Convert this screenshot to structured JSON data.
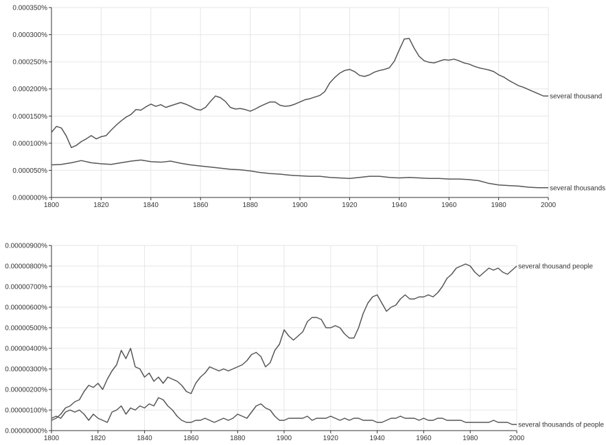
{
  "chart_data": [
    {
      "type": "line",
      "title": "",
      "xlabel": "",
      "ylabel": "",
      "xlim": [
        1800,
        2000
      ],
      "ylim": [
        0,
        0.00035
      ],
      "x_ticks": [
        "1800",
        "1820",
        "1840",
        "1860",
        "1880",
        "1900",
        "1920",
        "1940",
        "1960",
        "1980",
        "2000"
      ],
      "y_ticks": [
        "0.000000%",
        "0.000050%",
        "0.000100%",
        "0.000150%",
        "0.000200%",
        "0.000250%",
        "0.000300%",
        "0.000350%"
      ],
      "grid": true,
      "legend": "labels at line ends",
      "series": [
        {
          "name": "several thousand",
          "color": "#555555",
          "x": [
            1800,
            1802,
            1804,
            1806,
            1808,
            1810,
            1812,
            1814,
            1816,
            1818,
            1820,
            1822,
            1824,
            1826,
            1828,
            1830,
            1832,
            1834,
            1836,
            1838,
            1840,
            1842,
            1844,
            1846,
            1848,
            1850,
            1852,
            1854,
            1856,
            1858,
            1860,
            1862,
            1864,
            1866,
            1868,
            1870,
            1872,
            1874,
            1876,
            1878,
            1880,
            1882,
            1884,
            1886,
            1888,
            1890,
            1892,
            1894,
            1896,
            1898,
            1900,
            1902,
            1904,
            1906,
            1908,
            1910,
            1912,
            1914,
            1916,
            1918,
            1920,
            1922,
            1924,
            1926,
            1928,
            1930,
            1932,
            1934,
            1936,
            1938,
            1940,
            1942,
            1944,
            1946,
            1948,
            1950,
            1952,
            1954,
            1956,
            1958,
            1960,
            1962,
            1964,
            1966,
            1968,
            1970,
            1972,
            1974,
            1976,
            1978,
            1980,
            1982,
            1984,
            1986,
            1988,
            1990,
            1992,
            1994,
            1996,
            1998,
            2000
          ],
          "values": [
            0.00012,
            0.000131,
            0.000128,
            0.000113,
            9.2e-05,
            9.6e-05,
            0.000103,
            0.000108,
            0.000114,
            0.000108,
            0.000112,
            0.000114,
            0.000124,
            0.000133,
            0.000141,
            0.000148,
            0.000153,
            0.000162,
            0.000161,
            0.000167,
            0.000172,
            0.000168,
            0.000171,
            0.000166,
            0.000169,
            0.000172,
            0.000175,
            0.000172,
            0.000168,
            0.000163,
            0.000161,
            0.000166,
            0.000177,
            0.000187,
            0.000184,
            0.000177,
            0.000166,
            0.000163,
            0.000164,
            0.000162,
            0.000159,
            0.000163,
            0.000168,
            0.000172,
            0.000176,
            0.000176,
            0.00017,
            0.000168,
            0.000169,
            0.000172,
            0.000176,
            0.00018,
            0.000182,
            0.000185,
            0.000188,
            0.000195,
            0.000211,
            0.000221,
            0.000229,
            0.000234,
            0.000236,
            0.000232,
            0.000225,
            0.000223,
            0.000226,
            0.000231,
            0.000234,
            0.000236,
            0.000239,
            0.000251,
            0.000272,
            0.000292,
            0.000293,
            0.000275,
            0.00026,
            0.000252,
            0.000249,
            0.000248,
            0.000251,
            0.000254,
            0.000253,
            0.000255,
            0.000252,
            0.000248,
            0.000246,
            0.000242,
            0.000239,
            0.000237,
            0.000235,
            0.000232,
            0.000226,
            0.000222,
            0.000216,
            0.000211,
            0.000206,
            0.000203,
            0.000199,
            0.000195,
            0.000191,
            0.000187,
            0.000187
          ]
        },
        {
          "name": "several thousands",
          "color": "#555555",
          "x": [
            1800,
            1804,
            1808,
            1812,
            1816,
            1820,
            1824,
            1828,
            1832,
            1836,
            1840,
            1844,
            1848,
            1852,
            1856,
            1860,
            1864,
            1868,
            1872,
            1876,
            1880,
            1884,
            1888,
            1892,
            1896,
            1900,
            1904,
            1908,
            1912,
            1916,
            1920,
            1924,
            1928,
            1932,
            1936,
            1940,
            1944,
            1948,
            1952,
            1956,
            1960,
            1964,
            1968,
            1972,
            1976,
            1980,
            1984,
            1988,
            1992,
            1996,
            2000
          ],
          "values": [
            6e-05,
            6.1e-05,
            6.4e-05,
            6.8e-05,
            6.4e-05,
            6.2e-05,
            6.1e-05,
            6.4e-05,
            6.7e-05,
            6.9e-05,
            6.6e-05,
            6.5e-05,
            6.7e-05,
            6.3e-05,
            6e-05,
            5.8e-05,
            5.6e-05,
            5.4e-05,
            5.2e-05,
            5.1e-05,
            4.9e-05,
            4.6e-05,
            4.4e-05,
            4.3e-05,
            4.1e-05,
            4e-05,
            3.9e-05,
            3.9e-05,
            3.7e-05,
            3.6e-05,
            3.5e-05,
            3.7e-05,
            3.9e-05,
            3.9e-05,
            3.7e-05,
            3.6e-05,
            3.7e-05,
            3.6e-05,
            3.5e-05,
            3.5e-05,
            3.4e-05,
            3.4e-05,
            3.3e-05,
            3.1e-05,
            2.6e-05,
            2.3e-05,
            2.2e-05,
            2.1e-05,
            1.9e-05,
            1.8e-05,
            1.8e-05
          ]
        }
      ]
    },
    {
      "type": "line",
      "title": "",
      "xlabel": "",
      "ylabel": "",
      "xlim": [
        1800,
        2000
      ],
      "ylim": [
        0,
        9e-06
      ],
      "x_ticks": [
        "1800",
        "1820",
        "1840",
        "1860",
        "1880",
        "1900",
        "1920",
        "1940",
        "1960",
        "1980",
        "2000"
      ],
      "y_ticks": [
        "0.00000000%",
        "0.00000100%",
        "0.00000200%",
        "0.00000300%",
        "0.00000400%",
        "0.00000500%",
        "0.00000600%",
        "0.00000700%",
        "0.00000800%",
        "0.00000900%"
      ],
      "grid": true,
      "legend": "labels at line ends",
      "series": [
        {
          "name": "several thousand people",
          "color": "#555555",
          "x": [
            1800,
            1802,
            1804,
            1806,
            1808,
            1810,
            1812,
            1814,
            1816,
            1818,
            1820,
            1822,
            1824,
            1826,
            1828,
            1830,
            1832,
            1834,
            1836,
            1838,
            1840,
            1842,
            1844,
            1846,
            1848,
            1850,
            1852,
            1854,
            1856,
            1858,
            1860,
            1862,
            1864,
            1866,
            1868,
            1870,
            1872,
            1874,
            1876,
            1878,
            1880,
            1882,
            1884,
            1886,
            1888,
            1890,
            1892,
            1894,
            1896,
            1898,
            1900,
            1902,
            1904,
            1906,
            1908,
            1910,
            1912,
            1914,
            1916,
            1918,
            1920,
            1922,
            1924,
            1926,
            1928,
            1930,
            1932,
            1934,
            1936,
            1938,
            1940,
            1942,
            1944,
            1946,
            1948,
            1950,
            1952,
            1954,
            1956,
            1958,
            1960,
            1962,
            1964,
            1966,
            1968,
            1970,
            1972,
            1974,
            1976,
            1978,
            1980,
            1982,
            1984,
            1986,
            1988,
            1990,
            1992,
            1994,
            1996,
            1998,
            2000
          ],
          "values": [
            5e-07,
            6e-07,
            8e-07,
            1.1e-06,
            1.2e-06,
            1.4e-06,
            1.5e-06,
            1.9e-06,
            2.2e-06,
            2.1e-06,
            2.3e-06,
            2e-06,
            2.5e-06,
            2.9e-06,
            3.2e-06,
            3.9e-06,
            3.5e-06,
            4e-06,
            3.1e-06,
            3e-06,
            2.6e-06,
            2.8e-06,
            2.4e-06,
            2.6e-06,
            2.3e-06,
            2.6e-06,
            2.5e-06,
            2.4e-06,
            2.2e-06,
            1.9e-06,
            1.8e-06,
            2.3e-06,
            2.6e-06,
            2.8e-06,
            3.1e-06,
            3e-06,
            2.9e-06,
            3e-06,
            2.9e-06,
            3e-06,
            3.1e-06,
            3.2e-06,
            3.4e-06,
            3.7e-06,
            3.8e-06,
            3.6e-06,
            3.1e-06,
            3.3e-06,
            3.9e-06,
            4.2e-06,
            4.9e-06,
            4.6e-06,
            4.4e-06,
            4.6e-06,
            4.8e-06,
            5.3e-06,
            5.5e-06,
            5.5e-06,
            5.4e-06,
            5e-06,
            5e-06,
            5.1e-06,
            5e-06,
            4.7e-06,
            4.5e-06,
            4.5e-06,
            5e-06,
            5.7e-06,
            6.2e-06,
            6.5e-06,
            6.6e-06,
            6.2e-06,
            5.8e-06,
            6e-06,
            6.1e-06,
            6.4e-06,
            6.6e-06,
            6.4e-06,
            6.4e-06,
            6.5e-06,
            6.5e-06,
            6.6e-06,
            6.5e-06,
            6.7e-06,
            7e-06,
            7.4e-06,
            7.6e-06,
            7.9e-06,
            8e-06,
            8.1e-06,
            8e-06,
            7.7e-06,
            7.5e-06,
            7.7e-06,
            7.9e-06,
            7.8e-06,
            7.9e-06,
            7.7e-06,
            7.6e-06,
            7.8e-06,
            8e-06
          ]
        },
        {
          "name": "several thousands of people",
          "color": "#555555",
          "x": [
            1800,
            1802,
            1804,
            1806,
            1808,
            1810,
            1812,
            1814,
            1816,
            1818,
            1820,
            1822,
            1824,
            1826,
            1828,
            1830,
            1832,
            1834,
            1836,
            1838,
            1840,
            1842,
            1844,
            1846,
            1848,
            1850,
            1852,
            1854,
            1856,
            1858,
            1860,
            1862,
            1864,
            1866,
            1868,
            1870,
            1872,
            1874,
            1876,
            1878,
            1880,
            1882,
            1884,
            1886,
            1888,
            1890,
            1892,
            1894,
            1896,
            1898,
            1900,
            1902,
            1904,
            1906,
            1908,
            1910,
            1912,
            1914,
            1916,
            1918,
            1920,
            1922,
            1924,
            1926,
            1928,
            1930,
            1932,
            1934,
            1936,
            1938,
            1940,
            1942,
            1944,
            1946,
            1948,
            1950,
            1952,
            1954,
            1956,
            1958,
            1960,
            1962,
            1964,
            1966,
            1968,
            1970,
            1972,
            1974,
            1976,
            1978,
            1980,
            1982,
            1984,
            1986,
            1988,
            1990,
            1992,
            1994,
            1996,
            1998,
            2000
          ],
          "values": [
            6e-07,
            7e-07,
            6e-07,
            9e-07,
            1e-06,
            9e-07,
            1e-06,
            8e-07,
            5e-07,
            8e-07,
            6e-07,
            5e-07,
            4e-07,
            9e-07,
            1e-06,
            1.2e-06,
            8e-07,
            1.1e-06,
            1e-06,
            1.2e-06,
            1.1e-06,
            1.3e-06,
            1.2e-06,
            1.6e-06,
            1.5e-06,
            1.2e-06,
            1e-06,
            7e-07,
            5e-07,
            4e-07,
            4e-07,
            5e-07,
            5e-07,
            6e-07,
            5e-07,
            4e-07,
            5e-07,
            6e-07,
            5e-07,
            6e-07,
            8e-07,
            7e-07,
            6e-07,
            9e-07,
            1.2e-06,
            1.3e-06,
            1.1e-06,
            1e-06,
            7e-07,
            5e-07,
            5e-07,
            6e-07,
            6e-07,
            6e-07,
            6e-07,
            7e-07,
            5e-07,
            6e-07,
            6e-07,
            6e-07,
            7e-07,
            6e-07,
            5e-07,
            6e-07,
            5e-07,
            6e-07,
            6e-07,
            5e-07,
            5e-07,
            5e-07,
            4e-07,
            4e-07,
            5e-07,
            6e-07,
            6e-07,
            7e-07,
            6e-07,
            6e-07,
            6e-07,
            5e-07,
            6e-07,
            5e-07,
            5e-07,
            6e-07,
            6e-07,
            5e-07,
            5e-07,
            5e-07,
            5e-07,
            4e-07,
            4e-07,
            4e-07,
            4e-07,
            4e-07,
            4e-07,
            5e-07,
            4e-07,
            4e-07,
            4e-07,
            3e-07,
            3e-07
          ]
        }
      ]
    }
  ]
}
